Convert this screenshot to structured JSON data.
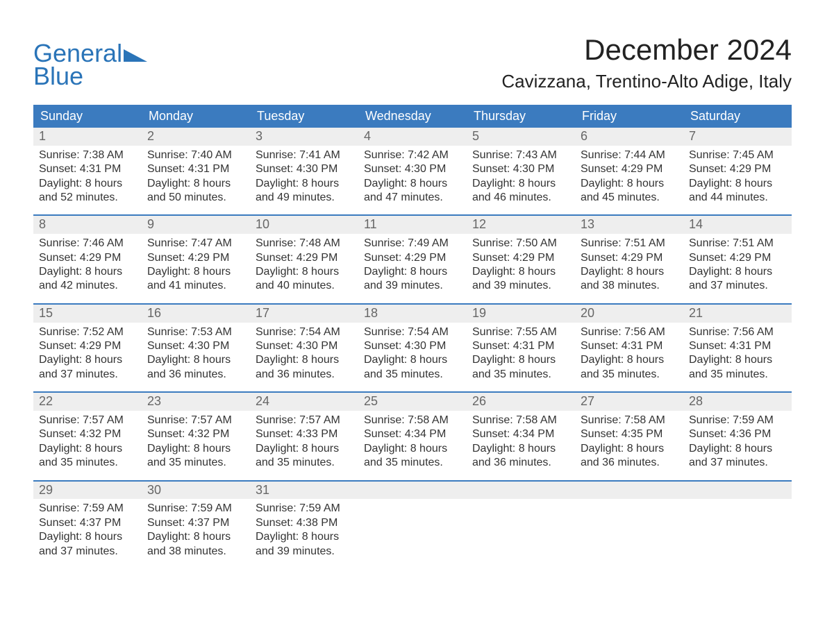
{
  "colors": {
    "brand_blue": "#2a74b8",
    "header_bg": "#3b7bbf",
    "header_text": "#ffffff",
    "daynum_bg": "#eeeeee",
    "daynum_text": "#666666",
    "body_text": "#333333",
    "page_bg": "#ffffff"
  },
  "typography": {
    "month_title_fontsize": 42,
    "location_fontsize": 26,
    "header_fontsize": 18,
    "daynum_fontsize": 18,
    "body_fontsize": 16,
    "logo_fontsize": 36
  },
  "logo": {
    "word1": "General",
    "word2": "Blue",
    "icon": "triangle-right"
  },
  "title": {
    "month": "December 2024",
    "location": "Cavizzana, Trentino-Alto Adige, Italy"
  },
  "dayHeaders": [
    "Sunday",
    "Monday",
    "Tuesday",
    "Wednesday",
    "Thursday",
    "Friday",
    "Saturday"
  ],
  "weeks": [
    [
      {
        "n": "1",
        "sr": "Sunrise: 7:38 AM",
        "ss": "Sunset: 4:31 PM",
        "d1": "Daylight: 8 hours",
        "d2": "and 52 minutes."
      },
      {
        "n": "2",
        "sr": "Sunrise: 7:40 AM",
        "ss": "Sunset: 4:31 PM",
        "d1": "Daylight: 8 hours",
        "d2": "and 50 minutes."
      },
      {
        "n": "3",
        "sr": "Sunrise: 7:41 AM",
        "ss": "Sunset: 4:30 PM",
        "d1": "Daylight: 8 hours",
        "d2": "and 49 minutes."
      },
      {
        "n": "4",
        "sr": "Sunrise: 7:42 AM",
        "ss": "Sunset: 4:30 PM",
        "d1": "Daylight: 8 hours",
        "d2": "and 47 minutes."
      },
      {
        "n": "5",
        "sr": "Sunrise: 7:43 AM",
        "ss": "Sunset: 4:30 PM",
        "d1": "Daylight: 8 hours",
        "d2": "and 46 minutes."
      },
      {
        "n": "6",
        "sr": "Sunrise: 7:44 AM",
        "ss": "Sunset: 4:29 PM",
        "d1": "Daylight: 8 hours",
        "d2": "and 45 minutes."
      },
      {
        "n": "7",
        "sr": "Sunrise: 7:45 AM",
        "ss": "Sunset: 4:29 PM",
        "d1": "Daylight: 8 hours",
        "d2": "and 44 minutes."
      }
    ],
    [
      {
        "n": "8",
        "sr": "Sunrise: 7:46 AM",
        "ss": "Sunset: 4:29 PM",
        "d1": "Daylight: 8 hours",
        "d2": "and 42 minutes."
      },
      {
        "n": "9",
        "sr": "Sunrise: 7:47 AM",
        "ss": "Sunset: 4:29 PM",
        "d1": "Daylight: 8 hours",
        "d2": "and 41 minutes."
      },
      {
        "n": "10",
        "sr": "Sunrise: 7:48 AM",
        "ss": "Sunset: 4:29 PM",
        "d1": "Daylight: 8 hours",
        "d2": "and 40 minutes."
      },
      {
        "n": "11",
        "sr": "Sunrise: 7:49 AM",
        "ss": "Sunset: 4:29 PM",
        "d1": "Daylight: 8 hours",
        "d2": "and 39 minutes."
      },
      {
        "n": "12",
        "sr": "Sunrise: 7:50 AM",
        "ss": "Sunset: 4:29 PM",
        "d1": "Daylight: 8 hours",
        "d2": "and 39 minutes."
      },
      {
        "n": "13",
        "sr": "Sunrise: 7:51 AM",
        "ss": "Sunset: 4:29 PM",
        "d1": "Daylight: 8 hours",
        "d2": "and 38 minutes."
      },
      {
        "n": "14",
        "sr": "Sunrise: 7:51 AM",
        "ss": "Sunset: 4:29 PM",
        "d1": "Daylight: 8 hours",
        "d2": "and 37 minutes."
      }
    ],
    [
      {
        "n": "15",
        "sr": "Sunrise: 7:52 AM",
        "ss": "Sunset: 4:29 PM",
        "d1": "Daylight: 8 hours",
        "d2": "and 37 minutes."
      },
      {
        "n": "16",
        "sr": "Sunrise: 7:53 AM",
        "ss": "Sunset: 4:30 PM",
        "d1": "Daylight: 8 hours",
        "d2": "and 36 minutes."
      },
      {
        "n": "17",
        "sr": "Sunrise: 7:54 AM",
        "ss": "Sunset: 4:30 PM",
        "d1": "Daylight: 8 hours",
        "d2": "and 36 minutes."
      },
      {
        "n": "18",
        "sr": "Sunrise: 7:54 AM",
        "ss": "Sunset: 4:30 PM",
        "d1": "Daylight: 8 hours",
        "d2": "and 35 minutes."
      },
      {
        "n": "19",
        "sr": "Sunrise: 7:55 AM",
        "ss": "Sunset: 4:31 PM",
        "d1": "Daylight: 8 hours",
        "d2": "and 35 minutes."
      },
      {
        "n": "20",
        "sr": "Sunrise: 7:56 AM",
        "ss": "Sunset: 4:31 PM",
        "d1": "Daylight: 8 hours",
        "d2": "and 35 minutes."
      },
      {
        "n": "21",
        "sr": "Sunrise: 7:56 AM",
        "ss": "Sunset: 4:31 PM",
        "d1": "Daylight: 8 hours",
        "d2": "and 35 minutes."
      }
    ],
    [
      {
        "n": "22",
        "sr": "Sunrise: 7:57 AM",
        "ss": "Sunset: 4:32 PM",
        "d1": "Daylight: 8 hours",
        "d2": "and 35 minutes."
      },
      {
        "n": "23",
        "sr": "Sunrise: 7:57 AM",
        "ss": "Sunset: 4:32 PM",
        "d1": "Daylight: 8 hours",
        "d2": "and 35 minutes."
      },
      {
        "n": "24",
        "sr": "Sunrise: 7:57 AM",
        "ss": "Sunset: 4:33 PM",
        "d1": "Daylight: 8 hours",
        "d2": "and 35 minutes."
      },
      {
        "n": "25",
        "sr": "Sunrise: 7:58 AM",
        "ss": "Sunset: 4:34 PM",
        "d1": "Daylight: 8 hours",
        "d2": "and 35 minutes."
      },
      {
        "n": "26",
        "sr": "Sunrise: 7:58 AM",
        "ss": "Sunset: 4:34 PM",
        "d1": "Daylight: 8 hours",
        "d2": "and 36 minutes."
      },
      {
        "n": "27",
        "sr": "Sunrise: 7:58 AM",
        "ss": "Sunset: 4:35 PM",
        "d1": "Daylight: 8 hours",
        "d2": "and 36 minutes."
      },
      {
        "n": "28",
        "sr": "Sunrise: 7:59 AM",
        "ss": "Sunset: 4:36 PM",
        "d1": "Daylight: 8 hours",
        "d2": "and 37 minutes."
      }
    ],
    [
      {
        "n": "29",
        "sr": "Sunrise: 7:59 AM",
        "ss": "Sunset: 4:37 PM",
        "d1": "Daylight: 8 hours",
        "d2": "and 37 minutes."
      },
      {
        "n": "30",
        "sr": "Sunrise: 7:59 AM",
        "ss": "Sunset: 4:37 PM",
        "d1": "Daylight: 8 hours",
        "d2": "and 38 minutes."
      },
      {
        "n": "31",
        "sr": "Sunrise: 7:59 AM",
        "ss": "Sunset: 4:38 PM",
        "d1": "Daylight: 8 hours",
        "d2": "and 39 minutes."
      },
      {
        "n": "",
        "sr": "",
        "ss": "",
        "d1": "",
        "d2": ""
      },
      {
        "n": "",
        "sr": "",
        "ss": "",
        "d1": "",
        "d2": ""
      },
      {
        "n": "",
        "sr": "",
        "ss": "",
        "d1": "",
        "d2": ""
      },
      {
        "n": "",
        "sr": "",
        "ss": "",
        "d1": "",
        "d2": ""
      }
    ]
  ]
}
